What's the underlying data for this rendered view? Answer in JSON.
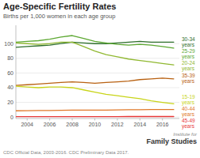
{
  "chart_data": {
    "type": "line",
    "title": "Age-Specific Fertility Rates",
    "subtitle": "Births per 1,000 women in each age group",
    "footnote": "CDC Official Data, 2003-2016. CDC Preliminary Data 2017.",
    "annotations": [
      "Institute for",
      "Family Studies"
    ],
    "x": [
      2003,
      2004,
      2005,
      2006,
      2007,
      2008,
      2009,
      2010,
      2011,
      2012,
      2013,
      2014,
      2015,
      2016,
      2017
    ],
    "xlim": [
      2003,
      2017.5
    ],
    "xticks": [
      2004,
      2006,
      2008,
      2010,
      2012,
      2014,
      2016
    ],
    "ylim": [
      -2,
      125
    ],
    "yticks": [
      0,
      20,
      40,
      60,
      80,
      100
    ],
    "grid": true,
    "series": [
      {
        "name": "30-34\nyears",
        "color": "#2d6e2a",
        "values": [
          95,
          96,
          97,
          98,
          100,
          102,
          101,
          100,
          100,
          101,
          102,
          103,
          102,
          102,
          102
        ]
      },
      {
        "name": "25-29\nyears",
        "color": "#5da832",
        "values": [
          102,
          103,
          104,
          106,
          109,
          111,
          107,
          103,
          101,
          99,
          98,
          99,
          98,
          96,
          94
        ]
      },
      {
        "name": "20-24\nyears",
        "color": "#90b830",
        "values": [
          101,
          100,
          99,
          100,
          102,
          102,
          96,
          90,
          85,
          82,
          79,
          77,
          75,
          73,
          71
        ]
      },
      {
        "name": "35-39\nyears",
        "color": "#b86010",
        "values": [
          43,
          44,
          45,
          46,
          47,
          48,
          47,
          46,
          47,
          48,
          49,
          51,
          52,
          53,
          52
        ]
      },
      {
        "name": "15-19\nyears",
        "color": "#c8d418",
        "values": [
          42,
          41,
          40,
          41,
          41,
          40,
          37,
          34,
          31,
          29,
          27,
          25,
          22,
          20,
          18
        ]
      },
      {
        "name": "40-44\nyears",
        "color": "#e07828",
        "values": [
          8.5,
          8.7,
          8.9,
          9.0,
          9.2,
          9.5,
          9.5,
          9.5,
          9.5,
          9.7,
          9.9,
          10.0,
          10.2,
          10.3,
          10.2
        ]
      },
      {
        "name": "45-49\nyears",
        "color": "#e83838",
        "values": [
          0.5,
          0.5,
          0.5,
          0.5,
          0.6,
          0.6,
          0.6,
          0.6,
          0.6,
          0.6,
          0.7,
          0.7,
          0.7,
          0.7,
          0.7
        ]
      }
    ]
  }
}
